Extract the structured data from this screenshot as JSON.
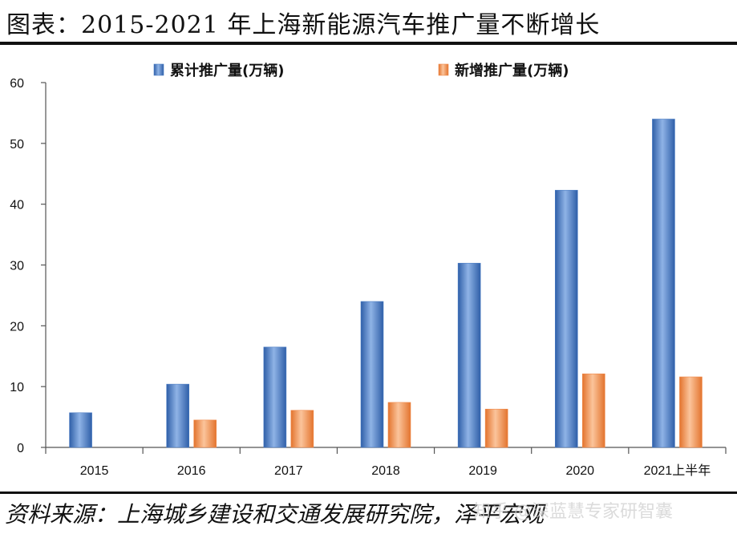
{
  "title": "图表：2015-2021 年上海新能源汽车推广量不断增长",
  "source": "资料来源：上海城乡建设和交通发展研究院，泽平宏观",
  "watermark": "知乎 @深蓝慧专家研智囊",
  "chart_data": {
    "type": "bar",
    "categories": [
      "2015",
      "2016",
      "2017",
      "2018",
      "2019",
      "2020",
      "2021上半年"
    ],
    "series": [
      {
        "name": "累计推广量(万辆)",
        "values": [
          5.7,
          10.4,
          16.5,
          24.0,
          30.3,
          42.3,
          54.0
        ],
        "color": "#4a7cc4"
      },
      {
        "name": "新增推广量(万辆)",
        "values": [
          null,
          4.5,
          6.1,
          7.4,
          6.3,
          12.1,
          11.6
        ],
        "color": "#f0894a"
      }
    ],
    "ylim": [
      0,
      60
    ],
    "yticks": [
      0,
      10,
      20,
      30,
      40,
      50,
      60
    ],
    "legend_position": "top",
    "grid": false
  }
}
